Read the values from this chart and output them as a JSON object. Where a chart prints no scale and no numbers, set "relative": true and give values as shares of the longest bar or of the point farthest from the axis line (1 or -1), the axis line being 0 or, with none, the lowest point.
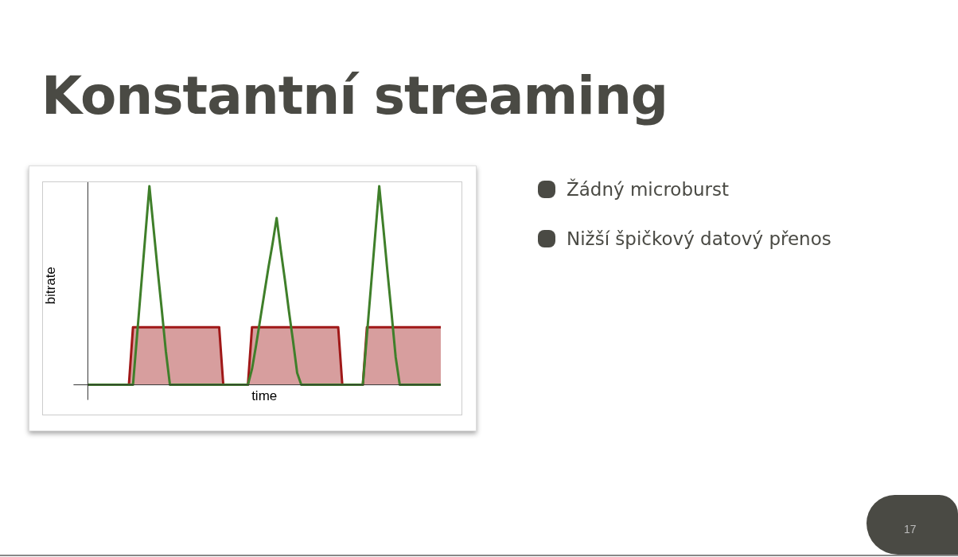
{
  "chart_data": {
    "type": "line",
    "title": "Konstantní streaming",
    "xlabel": "time",
    "ylabel": "bitrate",
    "relative": true,
    "grid": false,
    "legend": false,
    "marker": "none",
    "categories": [
      null,
      null,
      null,
      null,
      null,
      null,
      null,
      null,
      null,
      null,
      null,
      null,
      null,
      null,
      null,
      null,
      null,
      null,
      null,
      null,
      null,
      null,
      null,
      null,
      null,
      null,
      null,
      null,
      null,
      null,
      null,
      null,
      null,
      null,
      null,
      null,
      null,
      null,
      null,
      null,
      null,
      null,
      null,
      null,
      null,
      null,
      null,
      null,
      null,
      null,
      null,
      null,
      null,
      null,
      null,
      null,
      null,
      null,
      null,
      null,
      null,
      null,
      null,
      null,
      null,
      null,
      null,
      null,
      null,
      null,
      null,
      null,
      null,
      null,
      null,
      null,
      null,
      null,
      null,
      null,
      null,
      null,
      null,
      null,
      null,
      null,
      null
    ],
    "series": [
      {
        "type": "area",
        "color": "#a01818",
        "values": [
          0,
          0,
          0,
          0,
          0,
          0,
          0,
          0,
          0,
          0,
          0,
          0.29,
          0.29,
          0.29,
          0.29,
          0.29,
          0.29,
          0.29,
          0.29,
          0.29,
          0.29,
          0.29,
          0.29,
          0.29,
          0.29,
          0.29,
          0.29,
          0.29,
          0.29,
          0.29,
          0.29,
          0.29,
          0.29,
          0,
          0,
          0,
          0,
          0,
          0,
          0,
          0.29,
          0.29,
          0.29,
          0.29,
          0.29,
          0.29,
          0.29,
          0.29,
          0.29,
          0.29,
          0.29,
          0.29,
          0.29,
          0.29,
          0.29,
          0.29,
          0.29,
          0.29,
          0.29,
          0.29,
          0.29,
          0.29,
          0,
          0,
          0,
          0,
          0,
          0,
          0.29,
          0.29,
          0.29,
          0.29,
          0.29,
          0.29,
          0.29,
          0.29,
          0.29,
          0.29,
          0.29,
          0.29,
          0.29,
          0.29,
          0.29,
          0.29,
          0.29,
          0.29,
          0.29
        ]
      },
      {
        "color": "#3f7f2a",
        "values": [
          0,
          0,
          0,
          0,
          0,
          0,
          0,
          0,
          0,
          0,
          0,
          0,
          0.25,
          0.5,
          0.75,
          1,
          0.79,
          0.58,
          0.38,
          0.17,
          0,
          0,
          0,
          0,
          0,
          0,
          0,
          0,
          0,
          0,
          0,
          0,
          0,
          0,
          0,
          0,
          0,
          0,
          0,
          0,
          0.08,
          0.2,
          0.33,
          0.46,
          0.59,
          0.71,
          0.84,
          0.68,
          0.53,
          0.37,
          0.22,
          0.06,
          0,
          0,
          0,
          0,
          0,
          0,
          0,
          0,
          0,
          0,
          0,
          0,
          0,
          0,
          0,
          0,
          0.25,
          0.5,
          0.75,
          1,
          0.79,
          0.57,
          0.36,
          0.14,
          0,
          0,
          0,
          0,
          0,
          0,
          0,
          0,
          0,
          0,
          0
        ]
      }
    ],
    "annotations": [
      "Žádný microburst",
      "Nižší špičkový datový přenos",
      "17"
    ]
  }
}
